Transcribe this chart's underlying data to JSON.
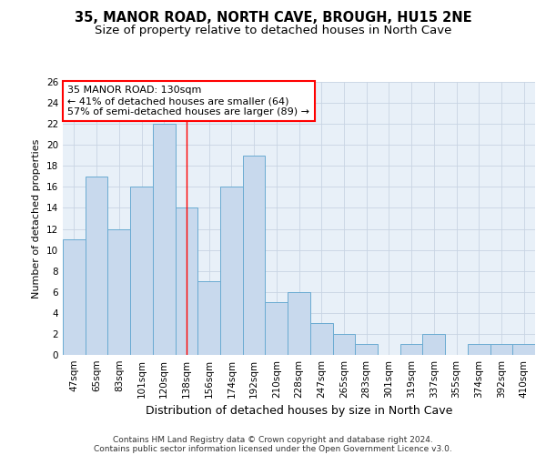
{
  "title1": "35, MANOR ROAD, NORTH CAVE, BROUGH, HU15 2NE",
  "title2": "Size of property relative to detached houses in North Cave",
  "xlabel": "Distribution of detached houses by size in North Cave",
  "ylabel": "Number of detached properties",
  "categories": [
    "47sqm",
    "65sqm",
    "83sqm",
    "101sqm",
    "120sqm",
    "138sqm",
    "156sqm",
    "174sqm",
    "192sqm",
    "210sqm",
    "228sqm",
    "247sqm",
    "265sqm",
    "283sqm",
    "301sqm",
    "319sqm",
    "337sqm",
    "355sqm",
    "374sqm",
    "392sqm",
    "410sqm"
  ],
  "values": [
    11,
    17,
    12,
    16,
    22,
    14,
    7,
    16,
    19,
    5,
    6,
    3,
    2,
    1,
    0,
    1,
    2,
    0,
    1,
    1,
    1
  ],
  "bar_color": "#c8d9ed",
  "bar_edge_color": "#6aabd2",
  "grid_color": "#c8d4e3",
  "background_color": "#e8f0f8",
  "annotation_box_text": "35 MANOR ROAD: 130sqm\n← 41% of detached houses are smaller (64)\n57% of semi-detached houses are larger (89) →",
  "annotation_box_color": "white",
  "annotation_box_edge_color": "red",
  "redline_x": 5.0,
  "ylim": [
    0,
    26
  ],
  "yticks": [
    0,
    2,
    4,
    6,
    8,
    10,
    12,
    14,
    16,
    18,
    20,
    22,
    24,
    26
  ],
  "footer_line1": "Contains HM Land Registry data © Crown copyright and database right 2024.",
  "footer_line2": "Contains public sector information licensed under the Open Government Licence v3.0.",
  "title1_fontsize": 10.5,
  "title2_fontsize": 9.5,
  "xlabel_fontsize": 9,
  "ylabel_fontsize": 8,
  "tick_fontsize": 7.5,
  "annotation_fontsize": 8,
  "footer_fontsize": 6.5
}
